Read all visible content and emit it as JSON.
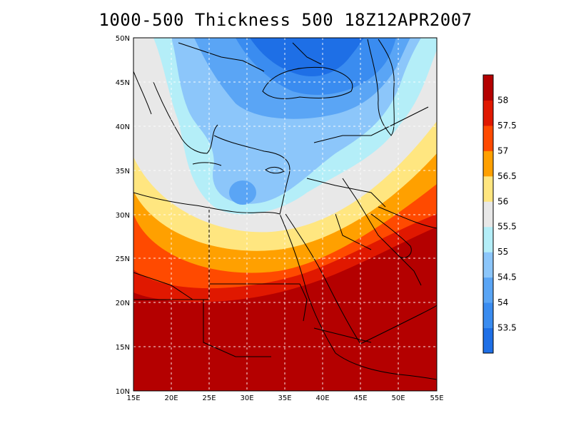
{
  "title": "1000-500 Thickness 500 18Z12APR2007",
  "map": {
    "lon_range": [
      15,
      55
    ],
    "lat_range": [
      10,
      50
    ],
    "lon_labels": [
      "15E",
      "20E",
      "25E",
      "30E",
      "35E",
      "40E",
      "45E",
      "50E",
      "55E"
    ],
    "lat_labels": [
      "10N",
      "15N",
      "20N",
      "25N",
      "30N",
      "35N",
      "40N",
      "45N",
      "50N"
    ]
  },
  "colorbar": {
    "labels": [
      "53.5",
      "54",
      "54.5",
      "55",
      "55.5",
      "56",
      "56.5",
      "57",
      "57.5",
      "58"
    ],
    "colors": [
      "#1e6fe6",
      "#3a8cf0",
      "#5aa5f5",
      "#8cc6fa",
      "#b4eef8",
      "#e8e8e8",
      "#ffe680",
      "#ffa000",
      "#ff4a00",
      "#e01800",
      "#b40000"
    ]
  }
}
